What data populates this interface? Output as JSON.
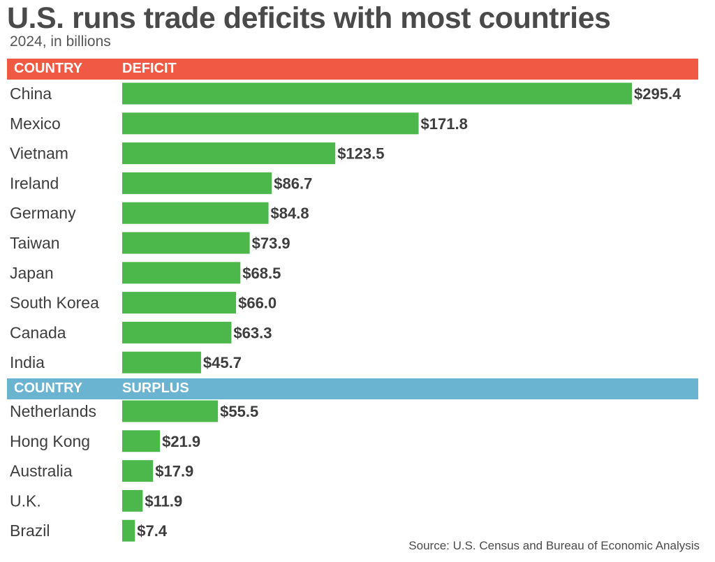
{
  "title": "U.S. runs trade deficits with most countries",
  "subtitle": "2024, in billions",
  "source": "Source: U.S. Census and Bureau of Economic Analysis",
  "colors": {
    "bar": "#4cb84c",
    "deficit_header": "#f05a44",
    "surplus_header": "#6ab4d2",
    "text": "#3d3d3d"
  },
  "deficit_header": {
    "country": "COUNTRY",
    "metric": "DEFICIT"
  },
  "surplus_header": {
    "country": "COUNTRY",
    "metric": "SURPLUS"
  },
  "chart_data": {
    "type": "bar",
    "orientation": "horizontal",
    "title": "U.S. runs trade deficits with most countries",
    "subtitle": "2024, in billions",
    "unit_prefix": "$",
    "groups": [
      {
        "name": "DEFICIT",
        "categories": [
          "China",
          "Mexico",
          "Vietnam",
          "Ireland",
          "Germany",
          "Taiwan",
          "Japan",
          "South Korea",
          "Canada",
          "India"
        ],
        "values": [
          295.4,
          171.8,
          123.5,
          86.7,
          84.8,
          73.9,
          68.5,
          66.0,
          63.3,
          45.7
        ],
        "labels": [
          "$295.4",
          "$171.8",
          "$123.5",
          "$86.7",
          "$84.8",
          "$73.9",
          "$68.5",
          "$66.0",
          "$63.3",
          "$45.7"
        ]
      },
      {
        "name": "SURPLUS",
        "categories": [
          "Netherlands",
          "Hong Kong",
          "Australia",
          "U.K.",
          "Brazil"
        ],
        "values": [
          55.5,
          21.9,
          17.9,
          11.9,
          7.4
        ],
        "labels": [
          "$55.5",
          "$21.9",
          "$17.9",
          "$11.9",
          "$7.4"
        ]
      }
    ],
    "xlim": [
      0,
      295.4
    ],
    "grid": false,
    "legend": "none"
  }
}
